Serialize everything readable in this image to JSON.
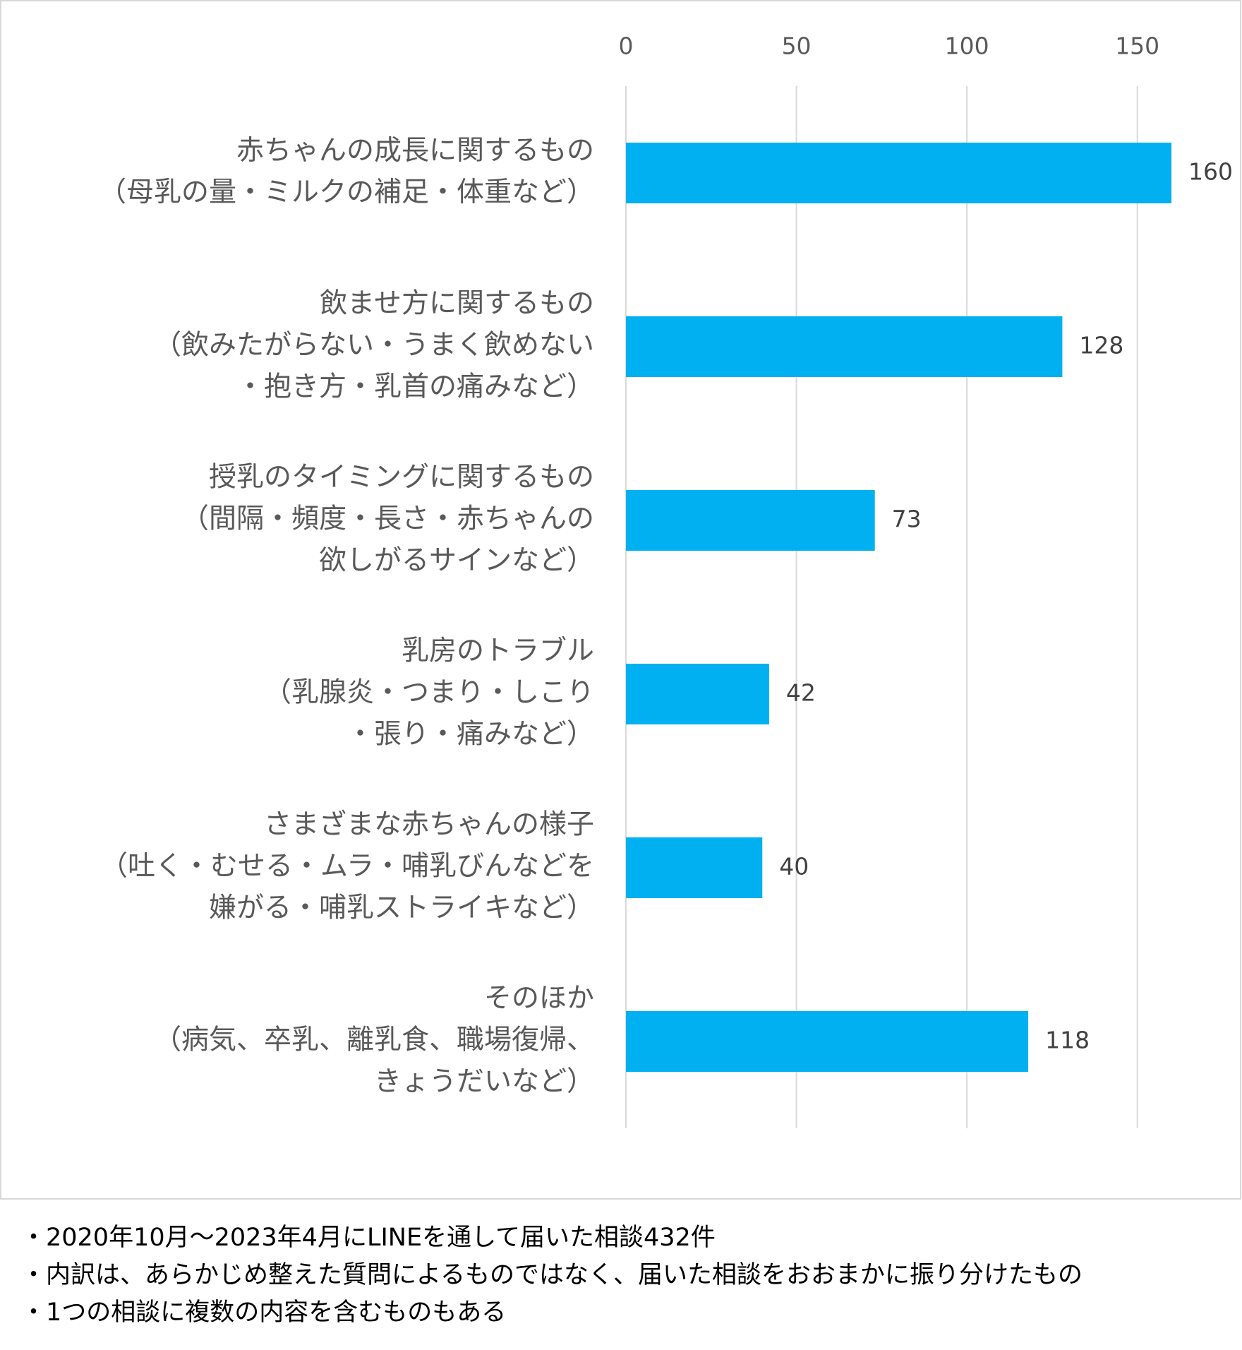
{
  "chart_data": {
    "type": "bar",
    "orientation": "horizontal",
    "categories": [
      [
        "赤ちゃんの成長に関するもの",
        "（母乳の量・ミルクの補足・体重など）"
      ],
      [
        "飲ませ方に関するもの",
        "（飲みたがらない・うまく飲めない",
        "・抱き方・乳首の痛みなど）"
      ],
      [
        "授乳のタイミングに関するもの",
        "（間隔・頻度・長さ・赤ちゃんの",
        "欲しがるサインなど）"
      ],
      [
        "乳房のトラブル",
        "（乳腺炎・つまり・しこり",
        "・張り・痛みなど）"
      ],
      [
        "さまざまな赤ちゃんの様子",
        "（吐く・むせる・ムラ・哺乳びんなどを",
        "嫌がる・哺乳ストライキなど）"
      ],
      [
        "そのほか",
        "（病気、卒乳、離乳食、職場復帰、",
        "きょうだいなど）"
      ]
    ],
    "values": [
      160,
      128,
      73,
      42,
      40,
      118
    ],
    "color": "#00b0f0",
    "xlim": [
      0,
      160
    ],
    "xticks": [
      0,
      50,
      100,
      150
    ],
    "grid": true
  },
  "notes": [
    "・2020年10月～2023年4月にLINEを通して届いた相談432件",
    "・内訳は、あらかじめ整えた質問によるものではなく、届いた相談をおおまかに振り分けたもの",
    "・1つの相談に複数の内容を含むものもある"
  ]
}
